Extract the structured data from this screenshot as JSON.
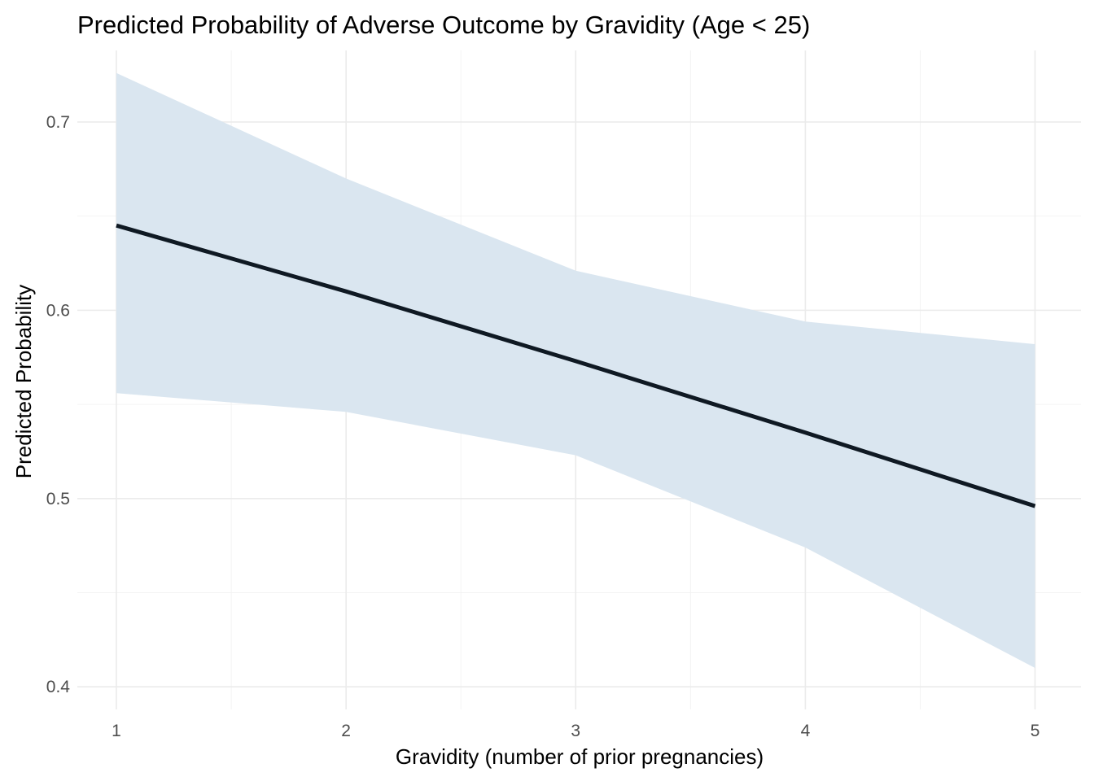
{
  "chart_data": {
    "type": "line",
    "title": "Predicted Probability of Adverse Outcome by Gravidity (Age < 25)",
    "xlabel": "Gravidity (number of prior pregnancies)",
    "ylabel": "Predicted Probability",
    "x": [
      1,
      2,
      3,
      4,
      5
    ],
    "series": [
      {
        "values": [
          0.645,
          0.61,
          0.573,
          0.535,
          0.496
        ],
        "lower": [
          0.556,
          0.546,
          0.523,
          0.474,
          0.41
        ],
        "upper": [
          0.726,
          0.67,
          0.621,
          0.594,
          0.582
        ]
      }
    ],
    "xlim": [
      0.83,
      5.2
    ],
    "ylim": [
      0.388,
      0.738
    ],
    "x_ticks": [
      "1",
      "2",
      "3",
      "4",
      "5"
    ],
    "y_ticks": [
      "0.4",
      "0.5",
      "0.6",
      "0.7"
    ],
    "grid": true,
    "colors": {
      "line": "#0f1923",
      "ribbon": "#dae6f0",
      "grid_major": "#ebebeb",
      "grid_minor": "#f2f2f2"
    }
  }
}
